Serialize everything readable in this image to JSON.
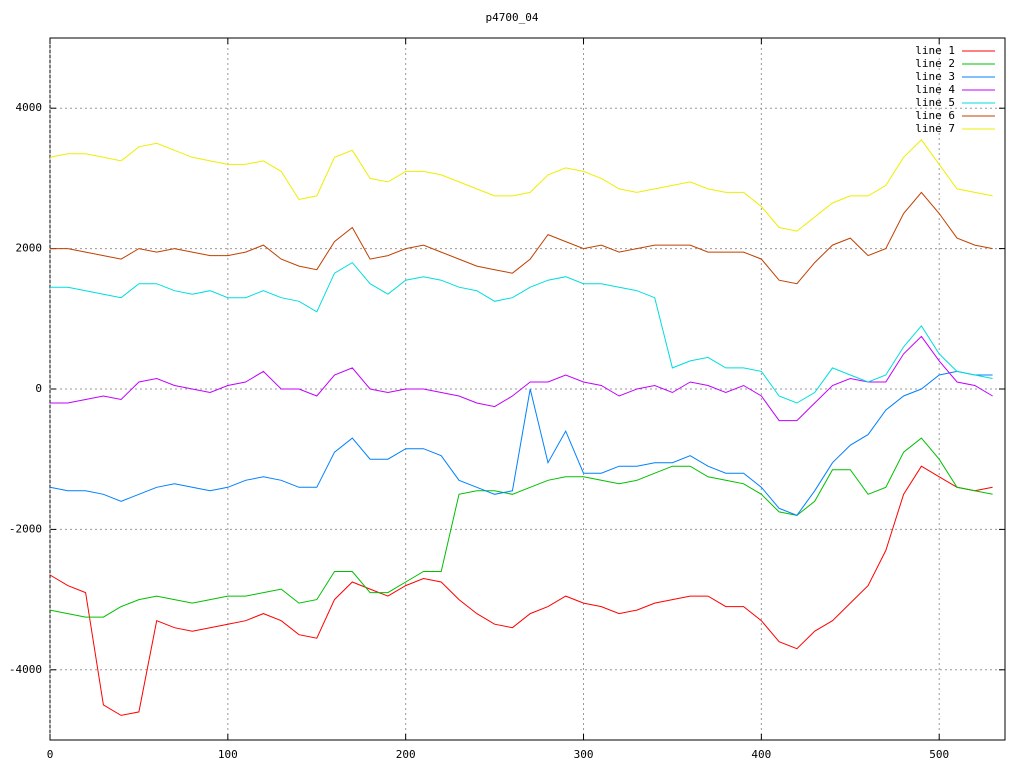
{
  "chart_data": {
    "type": "line",
    "title": "p4700_04",
    "x": [
      0,
      10,
      20,
      30,
      40,
      50,
      60,
      70,
      80,
      90,
      100,
      110,
      120,
      130,
      140,
      150,
      160,
      170,
      180,
      190,
      200,
      210,
      220,
      230,
      240,
      250,
      260,
      270,
      280,
      290,
      300,
      310,
      320,
      330,
      340,
      350,
      360,
      370,
      380,
      390,
      400,
      410,
      420,
      430,
      440,
      450,
      460,
      470,
      480,
      490,
      500,
      510,
      520,
      530
    ],
    "series": [
      {
        "name": "line 1",
        "color": "#ff0000",
        "values": [
          -2650,
          -2800,
          -2900,
          -4500,
          -4650,
          -4600,
          -3300,
          -3400,
          -3450,
          -3400,
          -3350,
          -3300,
          -3200,
          -3300,
          -3500,
          -3550,
          -3000,
          -2750,
          -2850,
          -2950,
          -2800,
          -2700,
          -2750,
          -3000,
          -3200,
          -3350,
          -3400,
          -3200,
          -3100,
          -2950,
          -3050,
          -3100,
          -3200,
          -3150,
          -3050,
          -3000,
          -2950,
          -2950,
          -3100,
          -3100,
          -3300,
          -3600,
          -3700,
          -3450,
          -3300,
          -3050,
          -2800,
          -2300,
          -1500,
          -1100,
          -1250,
          -1400,
          -1450,
          -1400
        ]
      },
      {
        "name": "line 2",
        "color": "#00c000",
        "values": [
          -3150,
          -3200,
          -3250,
          -3250,
          -3100,
          -3000,
          -2950,
          -3000,
          -3050,
          -3000,
          -2950,
          -2950,
          -2900,
          -2850,
          -3050,
          -3000,
          -2600,
          -2600,
          -2900,
          -2900,
          -2750,
          -2600,
          -2600,
          -1500,
          -1450,
          -1450,
          -1500,
          -1400,
          -1300,
          -1250,
          -1250,
          -1300,
          -1350,
          -1300,
          -1200,
          -1100,
          -1100,
          -1250,
          -1300,
          -1350,
          -1500,
          -1750,
          -1800,
          -1600,
          -1150,
          -1150,
          -1500,
          -1400,
          -900,
          -700,
          -1000,
          -1400,
          -1450,
          -1500
        ]
      },
      {
        "name": "line 3",
        "color": "#0080ff",
        "values": [
          -1400,
          -1450,
          -1450,
          -1500,
          -1600,
          -1500,
          -1400,
          -1350,
          -1400,
          -1450,
          -1400,
          -1300,
          -1250,
          -1300,
          -1400,
          -1400,
          -900,
          -700,
          -1000,
          -1000,
          -850,
          -850,
          -950,
          -1300,
          -1400,
          -1500,
          -1450,
          0,
          -1050,
          -600,
          -1200,
          -1200,
          -1100,
          -1100,
          -1050,
          -1050,
          -950,
          -1100,
          -1200,
          -1200,
          -1400,
          -1700,
          -1800,
          -1450,
          -1050,
          -800,
          -650,
          -300,
          -100,
          0,
          200,
          250,
          200,
          200
        ]
      },
      {
        "name": "line 4",
        "color": "#c000ff",
        "values": [
          -200,
          -200,
          -150,
          -100,
          -150,
          100,
          150,
          50,
          0,
          -50,
          50,
          100,
          250,
          0,
          0,
          -100,
          200,
          300,
          0,
          -50,
          0,
          0,
          -50,
          -100,
          -200,
          -250,
          -100,
          100,
          100,
          200,
          100,
          50,
          -100,
          0,
          50,
          -50,
          100,
          50,
          -50,
          50,
          -100,
          -450,
          -450,
          -200,
          50,
          150,
          100,
          100,
          500,
          750,
          400,
          100,
          50,
          -100
        ]
      },
      {
        "name": "line 5",
        "color": "#00dddd",
        "values": [
          1450,
          1450,
          1400,
          1350,
          1300,
          1500,
          1500,
          1400,
          1350,
          1400,
          1300,
          1300,
          1400,
          1300,
          1250,
          1100,
          1650,
          1800,
          1500,
          1350,
          1550,
          1600,
          1550,
          1450,
          1400,
          1250,
          1300,
          1450,
          1550,
          1600,
          1500,
          1500,
          1450,
          1400,
          1300,
          300,
          400,
          450,
          300,
          300,
          250,
          -100,
          -200,
          -50,
          300,
          200,
          100,
          200,
          600,
          900,
          500,
          250,
          200,
          150
        ]
      },
      {
        "name": "line 6",
        "color": "#c04000",
        "values": [
          2000,
          2000,
          1950,
          1900,
          1850,
          2000,
          1950,
          2000,
          1950,
          1900,
          1900,
          1950,
          2050,
          1850,
          1750,
          1700,
          2100,
          2300,
          1850,
          1900,
          2000,
          2050,
          1950,
          1850,
          1750,
          1700,
          1650,
          1850,
          2200,
          2100,
          2000,
          2050,
          1950,
          2000,
          2050,
          2050,
          2050,
          1950,
          1950,
          1950,
          1850,
          1550,
          1500,
          1800,
          2050,
          2150,
          1900,
          2000,
          2500,
          2800,
          2500,
          2150,
          2050,
          2000
        ]
      },
      {
        "name": "line 7",
        "color": "#eeee00",
        "values": [
          3300,
          3350,
          3350,
          3300,
          3250,
          3450,
          3500,
          3400,
          3300,
          3250,
          3200,
          3200,
          3250,
          3100,
          2700,
          2750,
          3300,
          3400,
          3000,
          2950,
          3100,
          3100,
          3050,
          2950,
          2850,
          2750,
          2750,
          2800,
          3050,
          3150,
          3100,
          3000,
          2850,
          2800,
          2850,
          2900,
          2950,
          2850,
          2800,
          2800,
          2600,
          2300,
          2250,
          2450,
          2650,
          2750,
          2750,
          2900,
          3300,
          3550,
          3200,
          2850,
          2800,
          2750
        ]
      }
    ],
    "xlim": [
      0,
      537
    ],
    "ylim": [
      -5000,
      5000
    ],
    "xticks": [
      0,
      100,
      200,
      300,
      400,
      500
    ],
    "yticks": [
      -4000,
      -2000,
      0,
      2000,
      4000
    ],
    "grid": true,
    "legend": "top-right"
  }
}
